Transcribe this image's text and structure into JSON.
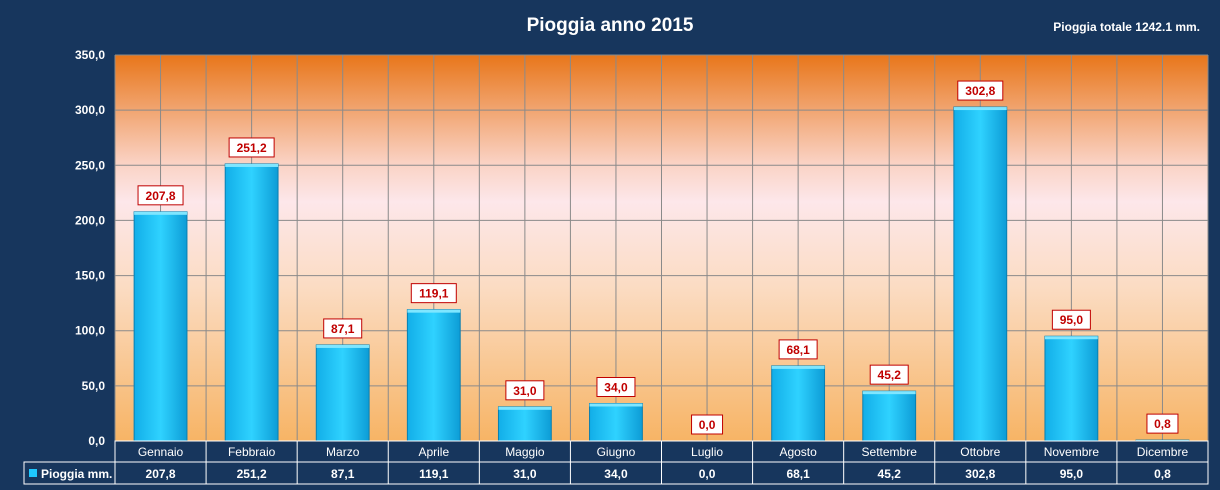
{
  "chart_data": {
    "type": "bar",
    "title": "Pioggia anno 2015",
    "subtitle": "Pioggia totale 1242.1 mm.",
    "categories": [
      "Gennaio",
      "Febbraio",
      "Marzo",
      "Aprile",
      "Maggio",
      "Giugno",
      "Luglio",
      "Agosto",
      "Settembre",
      "Ottobre",
      "Novembre",
      "Dicembre"
    ],
    "series": [
      {
        "name": "Pioggia mm.",
        "values": [
          207.8,
          251.2,
          87.1,
          119.1,
          31.0,
          34.0,
          0.0,
          68.1,
          45.2,
          302.8,
          95.0,
          0.8
        ],
        "color": "#1ec8ff"
      }
    ],
    "value_labels": [
      "207,8",
      "251,2",
      "87,1",
      "119,1",
      "31,0",
      "34,0",
      "0,0",
      "68,1",
      "45,2",
      "302,8",
      "95,0",
      "0,8"
    ],
    "yticks": [
      "0,0",
      "50,0",
      "100,0",
      "150,0",
      "200,0",
      "250,0",
      "300,0",
      "350,0"
    ],
    "ylim": [
      0,
      350
    ],
    "grid": true,
    "legend": "data table below chart",
    "colors": {
      "background": "#17365d",
      "bar": "#1ec8ff",
      "label_text": "#c00000",
      "plot_top": "#e8761a"
    }
  }
}
